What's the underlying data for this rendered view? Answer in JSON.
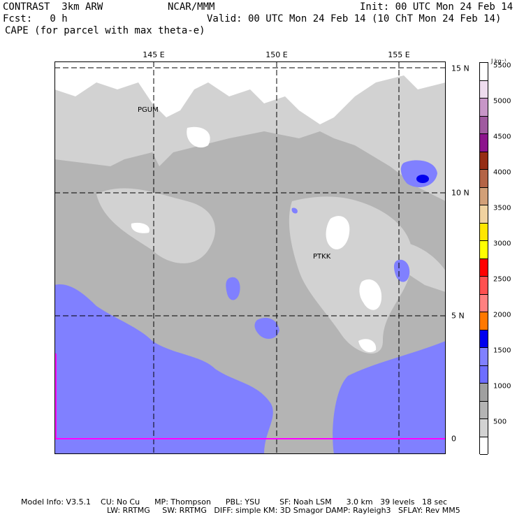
{
  "header": {
    "model": "CONTRAST  3km ARW",
    "center": "NCAR/MMM",
    "init": "Init: 00 UTC Mon 24 Feb 14",
    "fcst": "Fcst:   0 h",
    "valid": "Valid: 00 UTC Mon 24 Feb 14 (10 ChT Mon 24 Feb 14)",
    "field": "CAPE (for parcel with max theta-e)"
  },
  "map": {
    "lon_labels": [
      "145 E",
      "150 E",
      "155 E"
    ],
    "lat_labels": [
      "15 N",
      "10 N",
      "5 N",
      "0"
    ],
    "stations": [
      "PGUM",
      "PTKK"
    ]
  },
  "colorbar": {
    "units": "J kg⁻¹",
    "labels": [
      "500",
      "1000",
      "1500",
      "2000",
      "2500",
      "3000",
      "3500",
      "4000",
      "4500",
      "5000",
      "5500"
    ],
    "colors": [
      "#ffffff",
      "#d2d2d2",
      "#b4b4b4",
      "#a0a0a0",
      "#6e6eff",
      "#8080ff",
      "#0000ee",
      "#ff7800",
      "#ff8080",
      "#ff5050",
      "#ff0000",
      "#ffff00",
      "#ffe600",
      "#f0d2a0",
      "#d2a078",
      "#b46446",
      "#962d14",
      "#8c148c",
      "#a05aa0",
      "#c896c8",
      "#eedcee",
      "#ffffff"
    ]
  },
  "footer": {
    "line1": "Model Info: V3.5.1    CU: No Cu      MP: Thompson      PBL: YSU        SF: Noah LSM      3.0 km   39 levels   18 sec",
    "line2": "LW: RRTMG     SW: RRTMG   DIFF: simple KM: 3D Smagor DAMP: Rayleigh3   SFLAY: Rev MM5"
  }
}
